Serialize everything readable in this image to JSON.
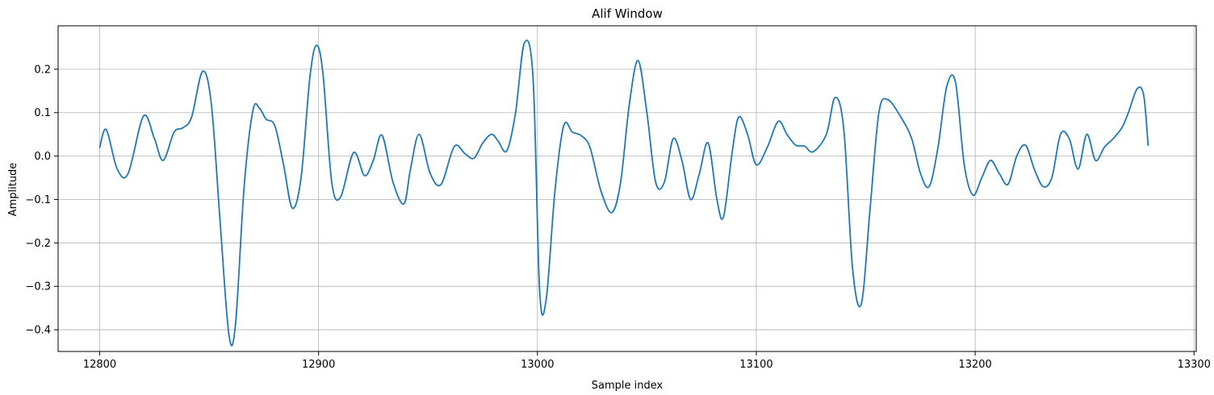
{
  "chart_data": {
    "type": "line",
    "title": "Alif Window",
    "xlabel": "Sample index",
    "ylabel": "Amplitude",
    "xlim": [
      12781,
      13301
    ],
    "ylim": [
      -0.45,
      0.3
    ],
    "xticks": [
      12800,
      12900,
      13000,
      13100,
      13200,
      13300
    ],
    "yticks": [
      -0.4,
      -0.3,
      -0.2,
      -0.1,
      0.0,
      0.1,
      0.2
    ],
    "xtick_labels": [
      "12800",
      "12900",
      "13000",
      "13100",
      "13200",
      "13300"
    ],
    "ytick_labels": [
      "−0.4",
      "−0.3",
      "−0.2",
      "−0.1",
      "0.0",
      "0.1",
      "0.2"
    ],
    "grid": true,
    "line_color": "#1f77b4",
    "series": [
      {
        "x": [
          12800,
          12803,
          12808,
          12813,
          12820,
          12825,
          12829,
          12834,
          12838,
          12842,
          12847,
          12851,
          12855,
          12859,
          12862,
          12866,
          12870,
          12873,
          12876,
          12880,
          12884,
          12888,
          12892,
          12896,
          12899,
          12902,
          12906,
          12910,
          12916,
          12921,
          12925,
          12929,
          12934,
          12939,
          12942,
          12946,
          12951,
          12956,
          12962,
          12967,
          12971,
          12975,
          12979,
          12982,
          12986,
          12990,
          12994,
          12998,
          13001,
          13004,
          13008,
          13012,
          13016,
          13020,
          13024,
          13029,
          13034,
          13038,
          13042,
          13046,
          13050,
          13054,
          13058,
          13062,
          13066,
          13070,
          13074,
          13078,
          13082,
          13085,
          13089,
          13092,
          13096,
          13100,
          13105,
          13110,
          13114,
          13118,
          13122,
          13126,
          13132,
          13136,
          13140,
          13144,
          13148,
          13152,
          13156,
          13160,
          13166,
          13171,
          13175,
          13179,
          13183,
          13187,
          13191,
          13195,
          13199,
          13203,
          13207,
          13211,
          13215,
          13219,
          13223,
          13227,
          13231,
          13235,
          13239,
          13243,
          13247,
          13251,
          13255,
          13259,
          13263,
          13267,
          13270,
          13274,
          13277,
          13279
        ],
        "y": [
          0.02,
          0.061,
          -0.03,
          -0.04,
          0.092,
          0.04,
          -0.01,
          0.055,
          0.065,
          0.09,
          0.195,
          0.12,
          -0.15,
          -0.41,
          -0.39,
          -0.07,
          0.105,
          0.11,
          0.085,
          0.07,
          -0.02,
          -0.12,
          -0.05,
          0.18,
          0.255,
          0.19,
          -0.06,
          -0.095,
          0.008,
          -0.045,
          -0.01,
          0.048,
          -0.06,
          -0.11,
          -0.03,
          0.05,
          -0.04,
          -0.065,
          0.022,
          0.005,
          -0.005,
          0.03,
          0.05,
          0.035,
          0.012,
          0.1,
          0.26,
          0.18,
          -0.31,
          -0.33,
          -0.08,
          0.07,
          0.055,
          0.047,
          0.02,
          -0.08,
          -0.13,
          -0.06,
          0.12,
          0.22,
          0.1,
          -0.06,
          -0.06,
          0.04,
          -0.01,
          -0.1,
          -0.04,
          0.03,
          -0.1,
          -0.14,
          0.01,
          0.09,
          0.05,
          -0.02,
          0.02,
          0.08,
          0.05,
          0.025,
          0.023,
          0.01,
          0.05,
          0.135,
          0.06,
          -0.26,
          -0.34,
          -0.12,
          0.1,
          0.13,
          0.09,
          0.04,
          -0.04,
          -0.07,
          0.02,
          0.16,
          0.17,
          -0.02,
          -0.09,
          -0.05,
          -0.01,
          -0.04,
          -0.065,
          0.0,
          0.025,
          -0.03,
          -0.07,
          -0.05,
          0.05,
          0.04,
          -0.03,
          0.05,
          -0.01,
          0.02,
          0.04,
          0.065,
          0.1,
          0.155,
          0.14,
          0.025
        ]
      }
    ]
  }
}
